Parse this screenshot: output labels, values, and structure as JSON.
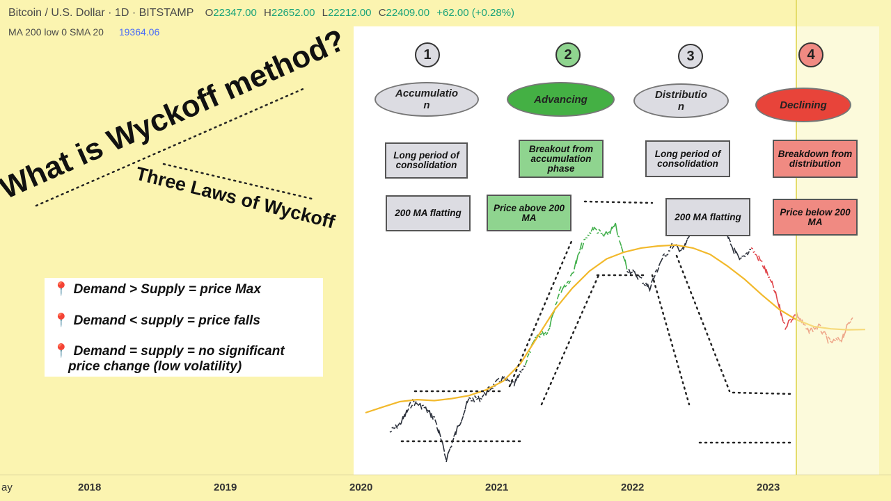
{
  "header": {
    "symbol": "Bitcoin / U.S. Dollar · 1D · BITSTAMP",
    "open_label": "O",
    "open": "22347.00",
    "high_label": "H",
    "high": "22652.00",
    "low_label": "L",
    "low": "22212.00",
    "close_label": "C",
    "close": "22409.00",
    "change": "+62.00 (+0.28%)"
  },
  "indicator": {
    "label": "MA 200 low 0 SMA 20",
    "value": "19364.06"
  },
  "titles": {
    "main": "What is Wyckoff method?",
    "sub": "Three Laws of Wyckoff"
  },
  "laws": [
    "Demand > Supply = price Max",
    "Demand < supply = price falls",
    "Demand = supply = no significant",
    "price change (low volatility)"
  ],
  "phases": [
    {
      "number": "1",
      "name": "Accumulatio\nn",
      "desc": "Long period of consolidation",
      "ma": "200 MA flatting"
    },
    {
      "number": "2",
      "name": "Advancing",
      "desc": "Breakout from accumulation phase",
      "ma": "Price above 200 MA"
    },
    {
      "number": "3",
      "name": "Distributio\nn",
      "desc": "Long period of consolidation",
      "ma": "200 MA flatting"
    },
    {
      "number": "4",
      "name": "Declining",
      "desc": "Breakdown from distribution",
      "ma": "Price below 200 MA"
    }
  ],
  "colors": {
    "accumulation": "#dcdce2",
    "advancing": "#44b044",
    "declining": "#e8443a",
    "price_up_phase": "#3fae49",
    "price_down_phase": "#e0454a",
    "price_flat": "#2a2f3a",
    "ma_line": "#f2b92c"
  },
  "chart_data": {
    "type": "line",
    "x_ticks": [
      "ay",
      "2018",
      "2019",
      "2020",
      "2021",
      "2022",
      "2023"
    ],
    "series": [
      {
        "values": [
          6500,
          7200,
          9000,
          8500,
          7500,
          4900,
          6800,
          9200,
          9300,
          10500,
          11500,
          10700,
          13500,
          18000,
          19000,
          29000,
          33000,
          47000,
          57000,
          52000,
          58000,
          37000,
          34000,
          30000,
          40000,
          47000,
          45000,
          60000,
          57000,
          66000,
          50000,
          40000,
          46000,
          39000,
          30000,
          20000,
          23000,
          19000,
          20000,
          16800,
          17500,
          22400
        ]
      },
      {
        "values": [
          8000,
          8500,
          9000,
          9200,
          9100,
          9300,
          9600,
          10200,
          11200,
          13500,
          18000,
          24000,
          30000,
          36000,
          41000,
          44000,
          46000,
          47000,
          47500,
          46000,
          43000,
          38000,
          33000,
          28000,
          24000,
          21500,
          20000,
          19500,
          19300,
          19364
        ]
      }
    ]
  }
}
